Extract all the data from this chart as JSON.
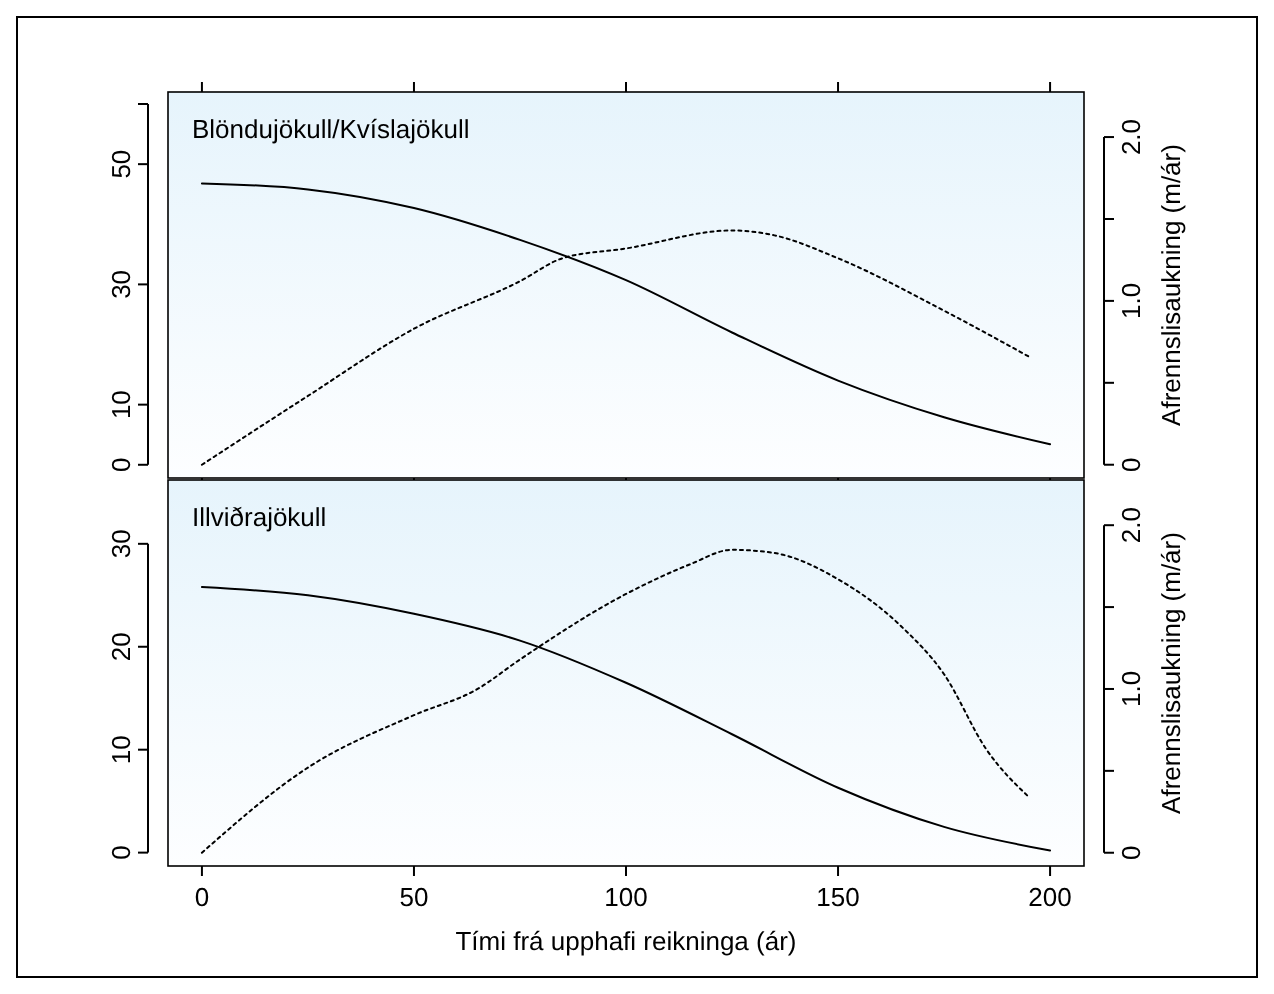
{
  "chart_data": [
    {
      "type": "line",
      "title": "Blöndujökull/Kvíslajökull",
      "y2label": "Afrennslisaukning (m/ár)",
      "xlim": [
        -8,
        208
      ],
      "xticks": [
        {
          "value": 0,
          "label": null
        },
        {
          "value": 50,
          "label": null
        },
        {
          "value": 100,
          "label": null
        },
        {
          "value": 150,
          "label": null
        },
        {
          "value": 200,
          "label": null
        }
      ],
      "ylim": [
        -2.2,
        62
      ],
      "yticks": [
        0,
        10,
        30,
        50,
        {
          "value": 60,
          "label": null
        }
      ],
      "y2lim": [
        -0.081,
        2.275
      ],
      "y2ticks": [
        0,
        {
          "value": 0.5,
          "label": null
        },
        {
          "value": 1,
          "label": "1.0"
        },
        {
          "value": 1.5,
          "label": null
        },
        {
          "value": 2,
          "label": "2.0"
        }
      ],
      "tick_labels": "y",
      "grid": false,
      "marker": "none",
      "series": [
        {
          "color": "#000000",
          "line_style": "solid",
          "x": [
            0,
            25,
            50,
            75,
            100,
            125,
            150,
            175,
            200
          ],
          "values": [
            46.8,
            45.8,
            42.7,
            37.4,
            30.7,
            22.0,
            14.0,
            7.9,
            3.4
          ]
        },
        {
          "color": "#000000",
          "line_style": "dotted",
          "axis": "y2",
          "x": [
            0,
            25,
            50,
            75,
            85,
            100,
            125,
            135,
            150,
            175,
            195
          ],
          "values": [
            0,
            0.42,
            0.83,
            1.12,
            1.26,
            1.32,
            1.43,
            1.4,
            1.26,
            0.94,
            0.66
          ]
        }
      ]
    },
    {
      "type": "line",
      "title": "Illviðrajökull",
      "xlabel": "Tími frá upphafi reikninga (ár)",
      "y2label": "Afrennslisaukning (m/ár)",
      "xlim": [
        -8,
        208
      ],
      "xticks": [
        0,
        50,
        100,
        150,
        200
      ],
      "ylim": [
        -1.3,
        36.2
      ],
      "yticks": [
        0,
        10,
        20,
        30
      ],
      "y2lim": [
        -0.081,
        2.276
      ],
      "y2ticks": [
        0,
        {
          "value": 0.5,
          "label": null
        },
        {
          "value": 1,
          "label": "1.0"
        },
        {
          "value": 1.5,
          "label": null
        },
        {
          "value": 2,
          "label": "2.0"
        }
      ],
      "grid": false,
      "marker": "none",
      "series": [
        {
          "color": "#000000",
          "line_style": "solid",
          "x": [
            0,
            25,
            50,
            75,
            100,
            125,
            150,
            175,
            200
          ],
          "values": [
            25.8,
            25.0,
            23.2,
            20.6,
            16.5,
            11.5,
            6.3,
            2.5,
            0.2
          ]
        },
        {
          "color": "#000000",
          "line_style": "dotted",
          "axis": "y2",
          "x": [
            0,
            25,
            50,
            65,
            75,
            100,
            115,
            125,
            135,
            150,
            165,
            175,
            185,
            195
          ],
          "values": [
            0,
            0.52,
            0.84,
            1.0,
            1.18,
            1.58,
            1.76,
            1.85,
            1.83,
            1.67,
            1.38,
            1.09,
            0.63,
            0.34
          ]
        }
      ]
    }
  ]
}
